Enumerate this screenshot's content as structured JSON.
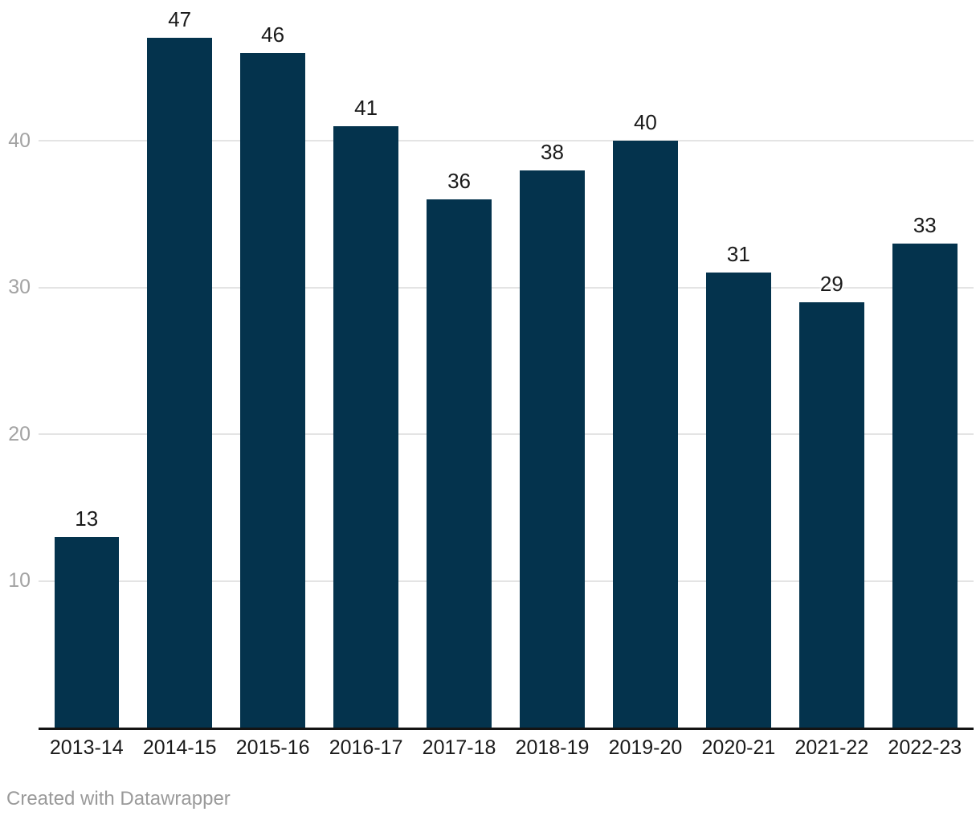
{
  "chart_data": {
    "type": "bar",
    "categories": [
      "2013-14",
      "2014-15",
      "2015-16",
      "2016-17",
      "2017-18",
      "2018-19",
      "2019-20",
      "2020-21",
      "2021-22",
      "2022-23"
    ],
    "values": [
      13,
      47,
      46,
      41,
      36,
      38,
      40,
      31,
      29,
      33
    ],
    "title": "",
    "xlabel": "",
    "ylabel": "",
    "ylim": [
      0,
      50
    ],
    "yticks": [
      10,
      20,
      30,
      40
    ],
    "grid": "horizontal-only",
    "legend": "none",
    "bar_color": "#04334d",
    "value_labels_shown": true
  },
  "colors": {
    "bar": "#04334d",
    "gridline": "#e4e4e4",
    "axis_line": "#141414",
    "tick_label": "#a3a3a3",
    "value_label": "#1a1a1a",
    "credit_text": "#9a9a9a"
  },
  "footer": {
    "credit": "Created with Datawrapper"
  }
}
